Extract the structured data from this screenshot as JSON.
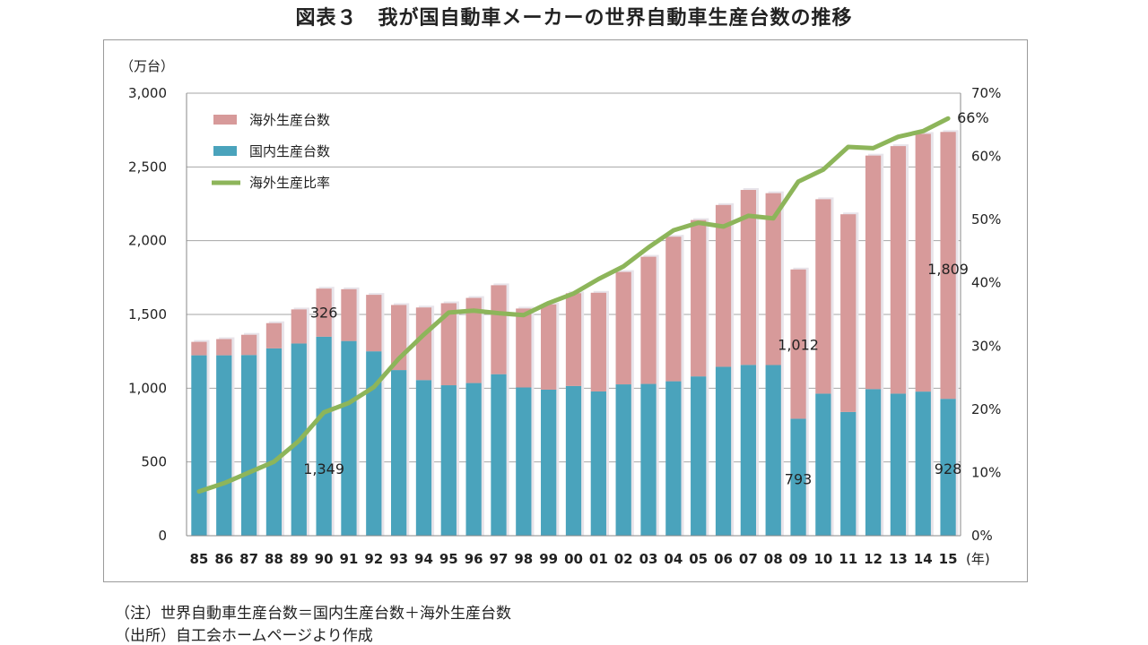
{
  "title": "図表３　我が国自動車メーカーの世界自動車生産台数の推移",
  "notes": {
    "note1": "（注）世界自動車生産台数＝国内生産台数＋海外生産台数",
    "note2": "（出所）自工会ホームページより作成"
  },
  "colors": {
    "overseas": "#d79a9a",
    "domestic": "#4aa3bc",
    "ratio_line": "#8db55a",
    "bar_shadow": "#e8e4ea",
    "grid": "#a6a6a6"
  },
  "chart_data": {
    "type": "bar",
    "stacked": true,
    "secondary_type": "line",
    "title": "図表３　我が国自動車メーカーの世界自動車生産台数の推移",
    "y_unit_label": "（万台）",
    "x_unit_label": "(年)",
    "categories": [
      "85",
      "86",
      "87",
      "88",
      "89",
      "90",
      "91",
      "92",
      "93",
      "94",
      "95",
      "96",
      "97",
      "98",
      "99",
      "00",
      "01",
      "02",
      "03",
      "04",
      "05",
      "06",
      "07",
      "08",
      "09",
      "10",
      "11",
      "12",
      "13",
      "14",
      "15"
    ],
    "ylim": [
      0,
      3000
    ],
    "yticks": [
      0,
      500,
      1000,
      1500,
      2000,
      2500,
      3000
    ],
    "ytick_labels": [
      "0",
      "500",
      "1,000",
      "1,500",
      "2,000",
      "2,500",
      "3,000"
    ],
    "y2lim": [
      0,
      70
    ],
    "y2ticks": [
      0,
      10,
      20,
      30,
      40,
      50,
      60,
      70
    ],
    "y2tick_labels": [
      "0%",
      "10%",
      "20%",
      "30%",
      "40%",
      "50%",
      "60%",
      "70%"
    ],
    "grid": true,
    "legend_position": "top-left",
    "series": [
      {
        "name": "海外生産台数",
        "axis": "left",
        "type": "bar",
        "values": [
          91,
          110,
          137,
          171,
          231,
          326,
          351,
          383,
          441,
          492,
          556,
          577,
          603,
          535,
          578,
          629,
          669,
          762,
          862,
          980,
          1060,
          1097,
          1186,
          1165,
          1012,
          1318,
          1340,
          1583,
          1678,
          1747,
          1809
        ]
      },
      {
        "name": "国内生産台数",
        "axis": "left",
        "type": "bar",
        "values": [
          1223,
          1223,
          1225,
          1270,
          1303,
          1349,
          1320,
          1250,
          1123,
          1055,
          1020,
          1035,
          1095,
          1005,
          990,
          1015,
          978,
          1026,
          1029,
          1047,
          1080,
          1145,
          1158,
          1157,
          793,
          963,
          839,
          994,
          963,
          977,
          928
        ]
      },
      {
        "name": "海外生産比率",
        "axis": "right",
        "type": "line",
        "values": [
          7,
          8.3,
          10,
          11.7,
          15,
          19.5,
          21,
          23.5,
          28,
          31.8,
          35.3,
          35.6,
          35.2,
          34.9,
          36.8,
          38.3,
          40.6,
          42.6,
          45.6,
          48.3,
          49.5,
          48.9,
          50.6,
          50.2,
          56,
          57.9,
          61.5,
          61.3,
          63.1,
          64,
          66
        ]
      }
    ],
    "annotations": [
      {
        "text": "326",
        "category": "90",
        "series": "海外生産台数",
        "y": 1510
      },
      {
        "text": "1,349",
        "category": "90",
        "series": "国内生産台数",
        "y": 450
      },
      {
        "text": "1,012",
        "category": "09",
        "series": "海外生産台数",
        "y": 1290
      },
      {
        "text": "793",
        "category": "09",
        "series": "国内生産台数",
        "y": 380
      },
      {
        "text": "1,809",
        "category": "15",
        "series": "海外生産台数",
        "y": 1805
      },
      {
        "text": "928",
        "category": "15",
        "series": "国内生産台数",
        "y": 450
      },
      {
        "text": "66%",
        "category": "15",
        "series": "海外生産比率",
        "y2": 66
      }
    ]
  }
}
